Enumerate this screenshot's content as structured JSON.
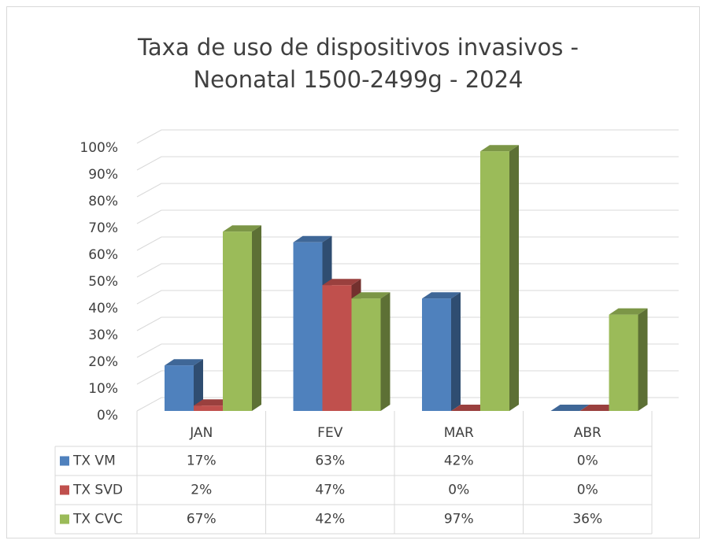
{
  "chart_data": {
    "type": "bar3d",
    "title": [
      "Taxa de uso de dispositivos invasivos -",
      "Neonatal 1500-2499g - 2024"
    ],
    "categories": [
      "JAN",
      "FEV",
      "MAR",
      "ABR"
    ],
    "series": [
      {
        "name": "TX VM",
        "color": "#4f81bd",
        "values": [
          17,
          63,
          42,
          0
        ],
        "value_labels": [
          "17%",
          "63%",
          "42%",
          "0%"
        ]
      },
      {
        "name": "TX SVD",
        "color": "#c0504d",
        "values": [
          2,
          47,
          0,
          0
        ],
        "value_labels": [
          "2%",
          "47%",
          "0%",
          "0%"
        ]
      },
      {
        "name": "TX CVC",
        "color": "#9bbb59",
        "values": [
          67,
          42,
          97,
          36
        ],
        "value_labels": [
          "67%",
          "42%",
          "97%",
          "36%"
        ]
      }
    ],
    "ylim": [
      0,
      100
    ],
    "yticks": [
      {
        "value": 0,
        "label": "0%"
      },
      {
        "value": 10,
        "label": "10%"
      },
      {
        "value": 20,
        "label": "20%"
      },
      {
        "value": 30,
        "label": "30%"
      },
      {
        "value": 40,
        "label": "40%"
      },
      {
        "value": 50,
        "label": "50%"
      },
      {
        "value": 60,
        "label": "60%"
      },
      {
        "value": 70,
        "label": "70%"
      },
      {
        "value": 80,
        "label": "80%"
      },
      {
        "value": 90,
        "label": "90%"
      },
      {
        "value": 100,
        "label": "100%"
      }
    ],
    "grid": true
  }
}
